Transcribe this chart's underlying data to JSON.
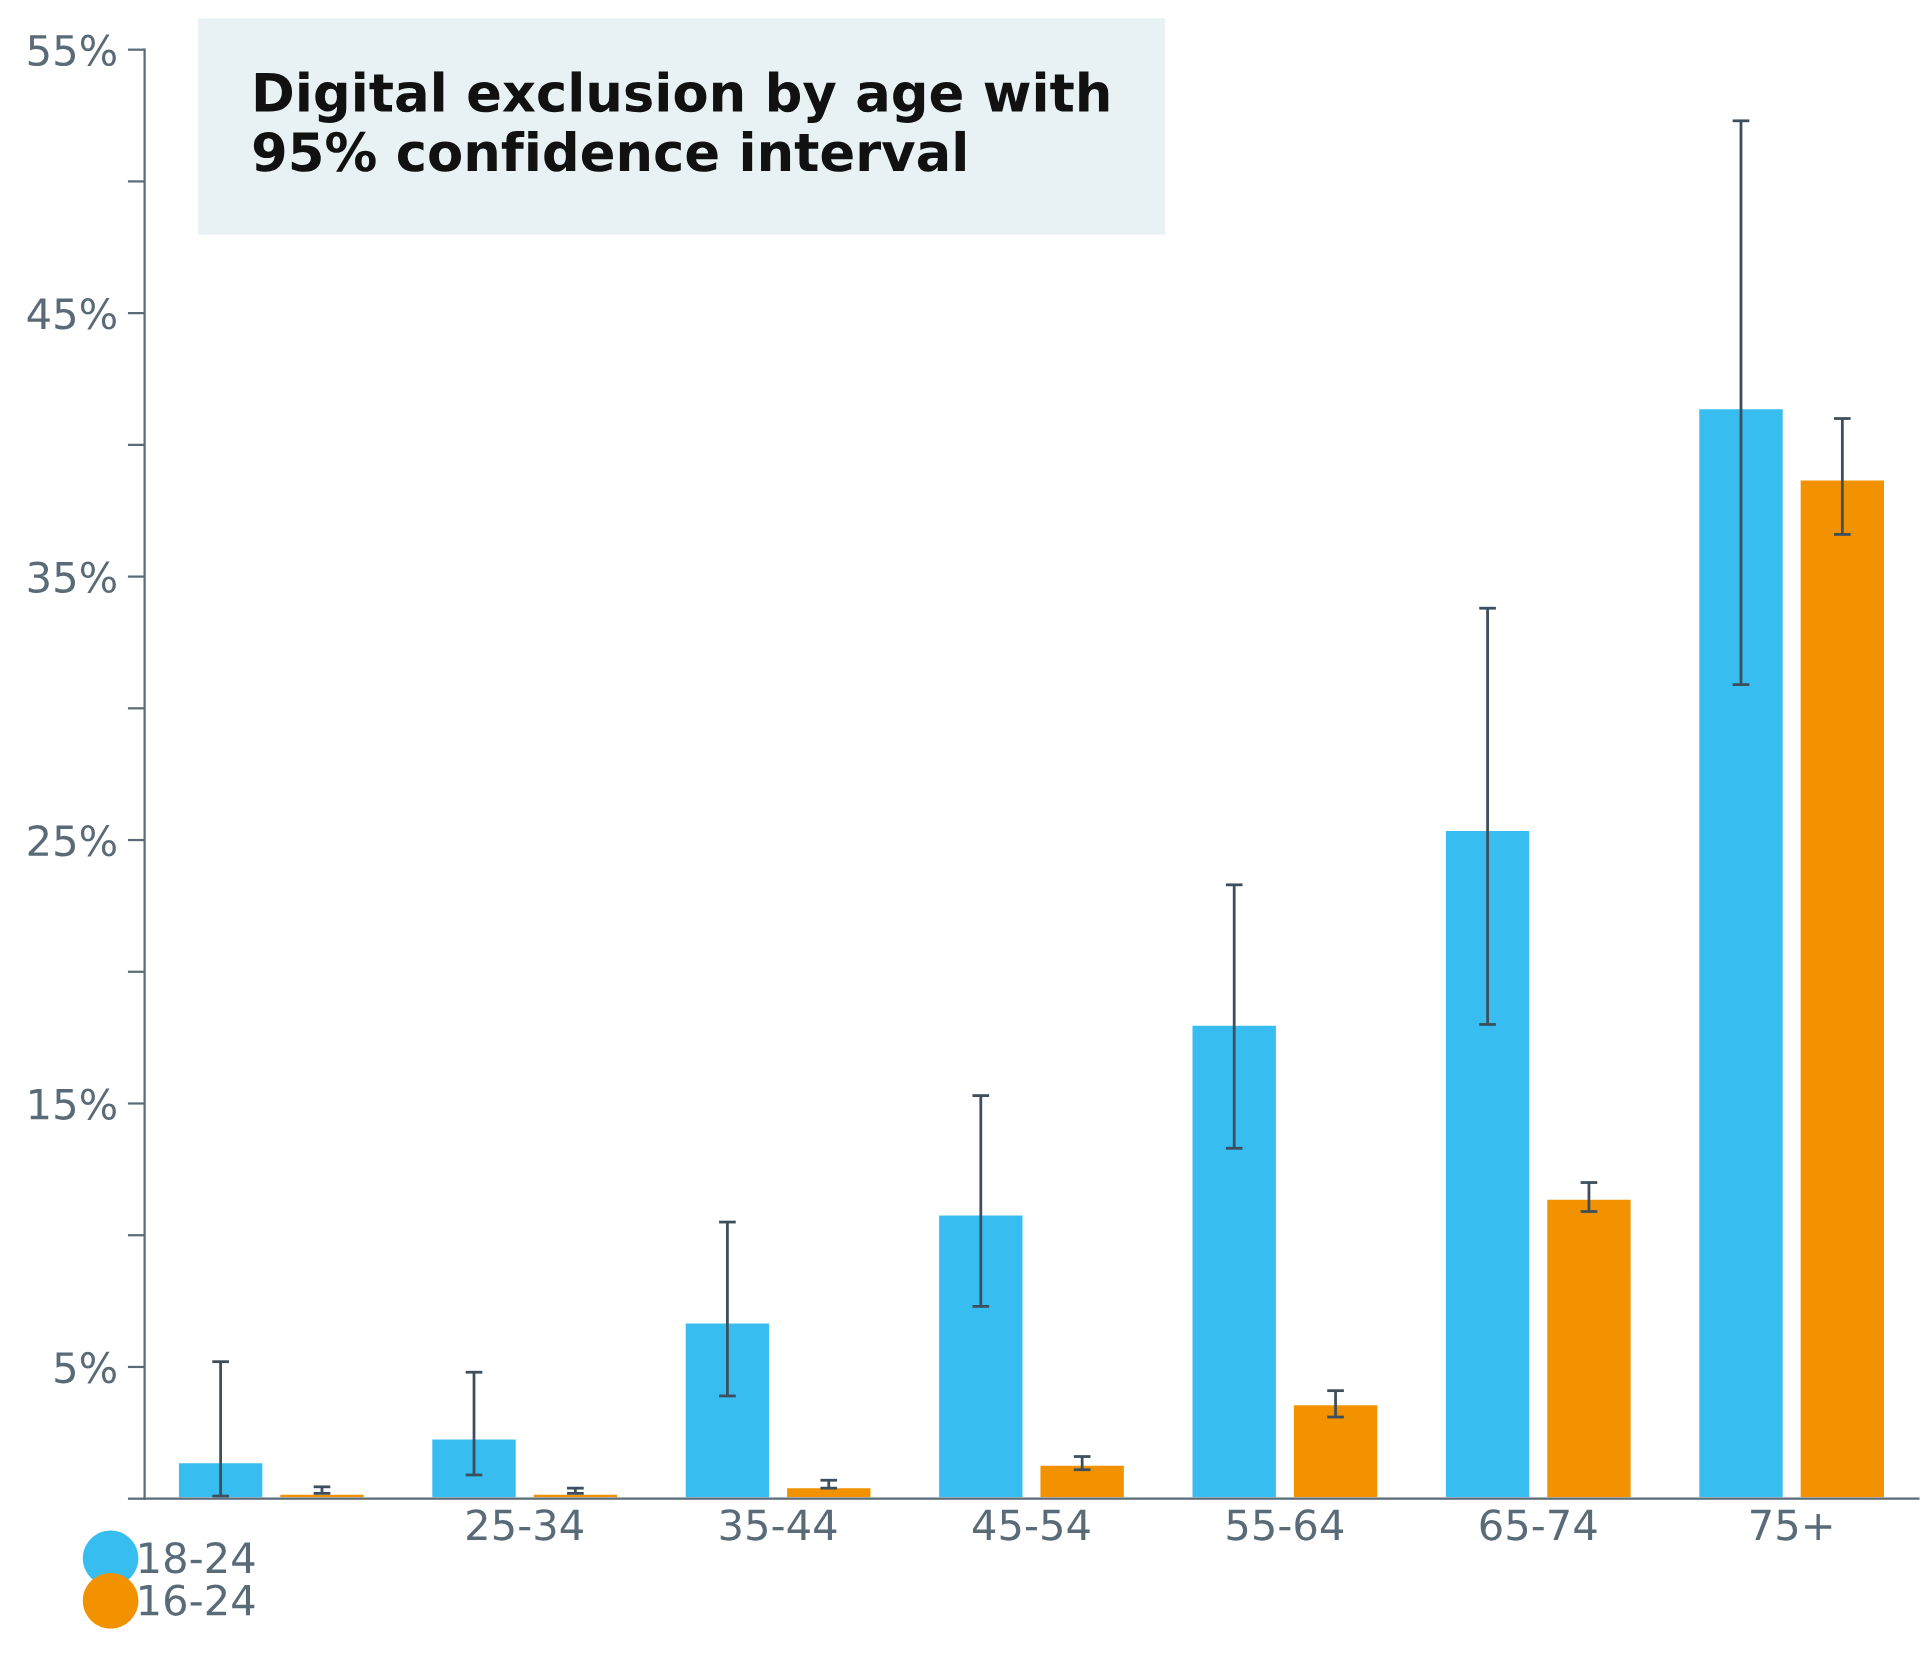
{
  "chart_data": {
    "type": "bar",
    "title": "Digital exclusion by age with\n95% confidence interval",
    "categories": [
      null,
      "25-34",
      "35-44",
      "45-54",
      "55-64",
      "65-74",
      "75+"
    ],
    "series": [
      {
        "name": "18-24",
        "color": "#38bdf0",
        "values": [
          1.4,
          2.3,
          6.7,
          10.8,
          18.0,
          25.4,
          41.4
        ],
        "errors": [
          [
            0.1,
            5.2
          ],
          [
            0.9,
            4.8
          ],
          [
            3.9,
            10.5
          ],
          [
            7.3,
            15.3
          ],
          [
            13.3,
            23.3
          ],
          [
            18.0,
            33.8
          ],
          [
            30.9,
            52.3
          ]
        ]
      },
      {
        "name": "16-24",
        "color": "#f39200",
        "values": [
          0.2,
          0.2,
          0.45,
          1.3,
          3.6,
          11.4,
          38.7
        ],
        "errors": [
          [
            0.2,
            0.45
          ],
          [
            0.2,
            0.4
          ],
          [
            0.4,
            0.7
          ],
          [
            1.1,
            1.6
          ],
          [
            3.1,
            4.1
          ],
          [
            10.9,
            12.0
          ],
          [
            36.6,
            41.0
          ]
        ]
      }
    ],
    "ylim": [
      0,
      55
    ],
    "yticks": [
      {
        "value": 0,
        "label": null
      },
      {
        "value": 5,
        "label": "5%"
      },
      {
        "value": 10,
        "label": null
      },
      {
        "value": 15,
        "label": "15%"
      },
      {
        "value": 20,
        "label": null
      },
      {
        "value": 25,
        "label": "25%"
      },
      {
        "value": 30,
        "label": null
      },
      {
        "value": 35,
        "label": "35%"
      },
      {
        "value": 40,
        "label": null
      },
      {
        "value": 45,
        "label": "45%"
      },
      {
        "value": 50,
        "label": null
      },
      {
        "value": 55,
        "label": "55%"
      }
    ],
    "grid": false,
    "legend": "bottom left"
  }
}
